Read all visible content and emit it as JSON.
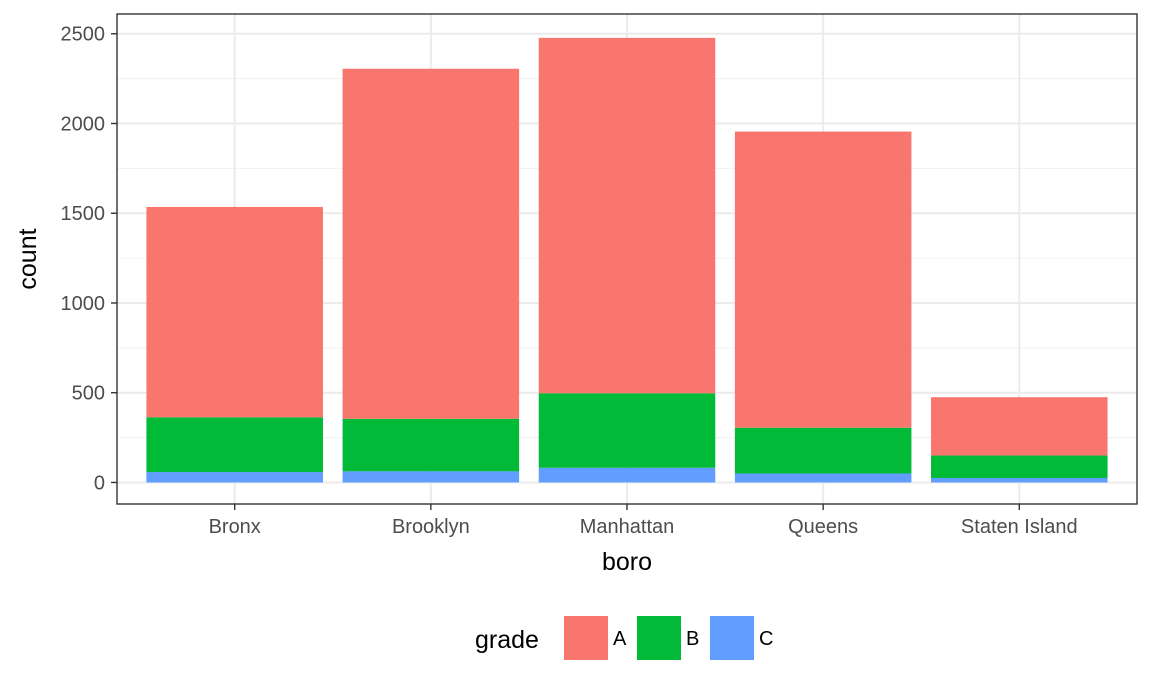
{
  "chart_data": {
    "type": "bar",
    "stacked": true,
    "theme": "ggplot2 theme_bw",
    "categories": [
      "Bronx",
      "Brooklyn",
      "Manhattan",
      "Queens",
      "Staten Island"
    ],
    "series": [
      {
        "name": "A",
        "color": "#F8766D",
        "values": [
          1172,
          1950,
          1980,
          1650,
          325
        ]
      },
      {
        "name": "B",
        "color": "#00BA38",
        "values": [
          305,
          293,
          415,
          255,
          125
        ]
      },
      {
        "name": "C",
        "color": "#619CFF",
        "values": [
          58,
          62,
          82,
          50,
          25
        ]
      }
    ],
    "xlabel": "boro",
    "ylabel": "count",
    "ylim": [
      -120,
      2610
    ],
    "yticks": [
      0,
      500,
      1000,
      1500,
      2000,
      2500
    ],
    "yminor": [
      250,
      750,
      1250,
      1750,
      2250
    ],
    "grid": true,
    "legend": {
      "title": "grade",
      "position": "bottom",
      "entries": [
        "A",
        "B",
        "C"
      ]
    }
  }
}
